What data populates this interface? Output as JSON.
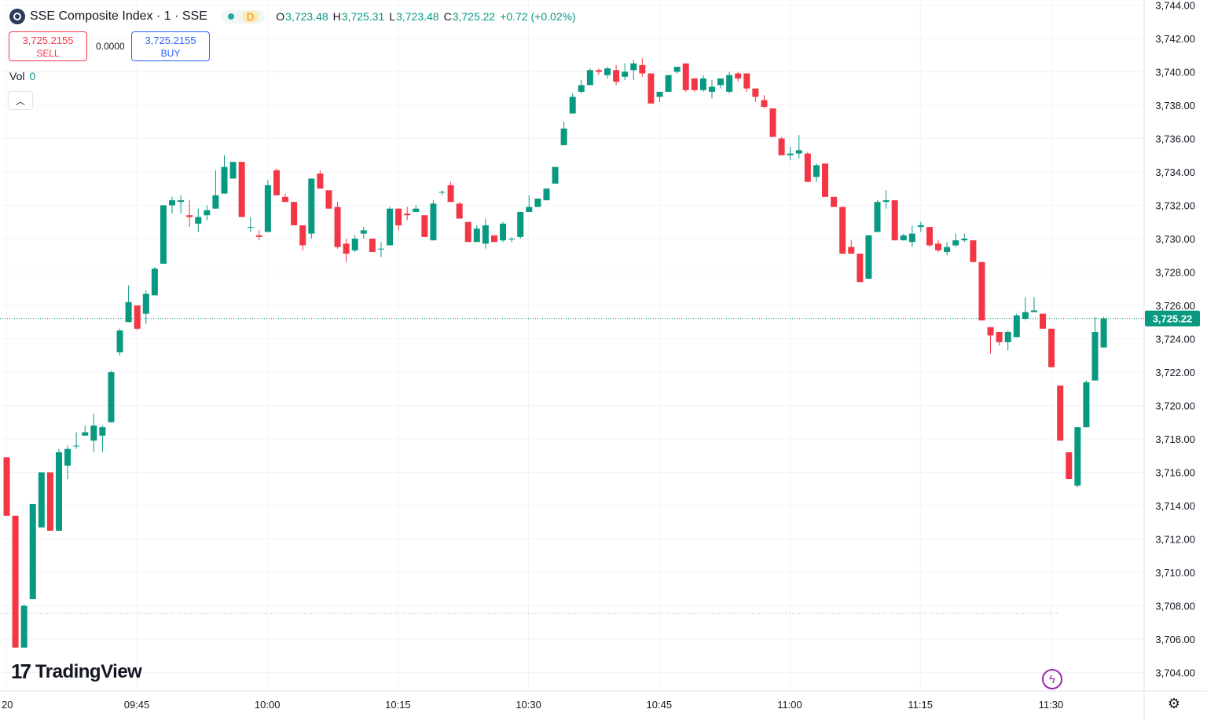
{
  "header": {
    "title": "SSE Composite Index · 1 · SSE",
    "status_letter": "D",
    "ohlc": {
      "o_label": "O",
      "o": "3,723.48",
      "h_label": "H",
      "h": "3,725.31",
      "l_label": "L",
      "l": "3,723.48",
      "c_label": "C",
      "c": "3,725.22",
      "change": "+0.72 (+0.02%)"
    }
  },
  "trade": {
    "sell_price": "3,725.2155",
    "sell_label": "SELL",
    "spread": "0.0000",
    "buy_price": "3,725.2155",
    "buy_label": "BUY"
  },
  "volume": {
    "label": "Vol",
    "value": "0"
  },
  "logo": {
    "text": "TradingView"
  },
  "icons": {
    "symbol": "sse-index-icon",
    "collapse": "chevron-up-icon",
    "flash": "lightning-icon",
    "settings": "gear-icon"
  },
  "colors": {
    "up": "#089981",
    "down": "#f23645",
    "price_badge": "#089981",
    "grid": "#f0f3fa",
    "reference_line": "#b2b5be"
  },
  "chart_data": {
    "type": "candlestick",
    "title": "SSE Composite Index · 1 · SSE",
    "interval": "1 minute",
    "x_ticks": [
      "20",
      "09:45",
      "10:00",
      "10:15",
      "10:30",
      "10:45",
      "11:00",
      "11:15",
      "11:30"
    ],
    "y_ticks": [
      "3,704.00",
      "3,706.00",
      "3,708.00",
      "3,710.00",
      "3,712.00",
      "3,714.00",
      "3,716.00",
      "3,718.00",
      "3,720.00",
      "3,722.00",
      "3,724.00",
      "3,726.00",
      "3,728.00",
      "3,730.00",
      "3,732.00",
      "3,734.00",
      "3,736.00",
      "3,738.00",
      "3,740.00",
      "3,742.00",
      "3,744.00"
    ],
    "ylim": [
      3702.9,
      3744.3
    ],
    "last_price": 3725.22,
    "last_price_label": "3,725.22",
    "reference_level": 3707.55,
    "grid": true,
    "minutes_visible": 122,
    "candles": [
      [
        3716.9,
        3716.9,
        3713.4,
        3713.4
      ],
      [
        3713.4,
        3713.4,
        3705.5,
        3705.5
      ],
      [
        3705.5,
        3708.1,
        3705.5,
        3708.0
      ],
      [
        3708.4,
        3714.1,
        3708.4,
        3714.1
      ],
      [
        3712.7,
        3716.0,
        3712.7,
        3716.0
      ],
      [
        3716.0,
        3716.0,
        3712.5,
        3712.5
      ],
      [
        3712.5,
        3717.4,
        3712.5,
        3717.2
      ],
      [
        3716.4,
        3717.6,
        3715.6,
        3717.4
      ],
      [
        3717.6,
        3718.4,
        3717.4,
        3717.6
      ],
      [
        3718.2,
        3718.8,
        3718.2,
        3718.4
      ],
      [
        3717.9,
        3719.5,
        3717.2,
        3718.8
      ],
      [
        3718.2,
        3718.8,
        3717.2,
        3718.7
      ],
      [
        3719.0,
        3722.1,
        3719.0,
        3722.0
      ],
      [
        3723.2,
        3724.6,
        3723.0,
        3724.5
      ],
      [
        3725.0,
        3727.2,
        3725.0,
        3726.2
      ],
      [
        3726.0,
        3726.0,
        3724.5,
        3724.6
      ],
      [
        3725.5,
        3726.9,
        3724.9,
        3726.7
      ],
      [
        3726.6,
        3728.3,
        3726.6,
        3728.2
      ],
      [
        3728.5,
        3732.0,
        3728.5,
        3732.0
      ],
      [
        3732.0,
        3732.5,
        3731.5,
        3732.3
      ],
      [
        3732.2,
        3732.6,
        3731.5,
        3732.3
      ],
      [
        3731.4,
        3732.3,
        3730.7,
        3731.3
      ],
      [
        3730.9,
        3731.8,
        3730.4,
        3731.3
      ],
      [
        3731.4,
        3732.0,
        3731.1,
        3731.7
      ],
      [
        3731.8,
        3734.1,
        3731.8,
        3732.6
      ],
      [
        3732.7,
        3735.0,
        3732.7,
        3734.3
      ],
      [
        3733.6,
        3734.4,
        3733.6,
        3734.6
      ],
      [
        3734.6,
        3734.6,
        3731.3,
        3731.3
      ],
      [
        3730.7,
        3731.3,
        3730.4,
        3730.7
      ],
      [
        3730.2,
        3730.5,
        3729.9,
        3730.1
      ],
      [
        3730.4,
        3733.5,
        3730.4,
        3733.2
      ],
      [
        3734.1,
        3734.2,
        3732.6,
        3732.6
      ],
      [
        3732.5,
        3732.7,
        3732.2,
        3732.2
      ],
      [
        3732.2,
        3732.2,
        3730.8,
        3730.8
      ],
      [
        3730.8,
        3730.8,
        3729.3,
        3729.6
      ],
      [
        3730.3,
        3733.6,
        3730.0,
        3733.6
      ],
      [
        3733.9,
        3734.1,
        3733.0,
        3733.0
      ],
      [
        3732.9,
        3732.9,
        3731.8,
        3731.8
      ],
      [
        3731.9,
        3732.2,
        3729.4,
        3729.5
      ],
      [
        3729.7,
        3730.0,
        3728.6,
        3729.1
      ],
      [
        3729.3,
        3730.2,
        3729.2,
        3730.0
      ],
      [
        3730.3,
        3730.7,
        3730.0,
        3730.5
      ],
      [
        3730.0,
        3730.0,
        3729.2,
        3729.2
      ],
      [
        3729.4,
        3729.8,
        3728.9,
        3729.4
      ],
      [
        3729.6,
        3731.9,
        3729.6,
        3731.8
      ],
      [
        3731.8,
        3731.8,
        3730.5,
        3730.8
      ],
      [
        3731.5,
        3731.9,
        3731.1,
        3731.4
      ],
      [
        3731.6,
        3732.0,
        3731.6,
        3731.8
      ],
      [
        3731.4,
        3731.4,
        3730.1,
        3730.1
      ],
      [
        3729.9,
        3732.3,
        3729.9,
        3732.1
      ],
      [
        3732.8,
        3732.9,
        3732.6,
        3732.8
      ],
      [
        3733.2,
        3733.4,
        3732.2,
        3732.2
      ],
      [
        3732.1,
        3732.2,
        3731.2,
        3731.2
      ],
      [
        3731.0,
        3731.0,
        3729.8,
        3729.8
      ],
      [
        3729.8,
        3730.8,
        3729.8,
        3730.6
      ],
      [
        3729.7,
        3731.2,
        3729.4,
        3730.8
      ],
      [
        3730.2,
        3730.2,
        3729.8,
        3729.8
      ],
      [
        3729.9,
        3731.0,
        3729.8,
        3730.9
      ],
      [
        3730.0,
        3730.1,
        3729.8,
        3730.0
      ],
      [
        3730.1,
        3731.6,
        3730.0,
        3731.6
      ],
      [
        3731.6,
        3732.6,
        3731.6,
        3731.9
      ],
      [
        3731.9,
        3732.4,
        3731.9,
        3732.4
      ],
      [
        3732.3,
        3733.0,
        3732.3,
        3733.0
      ],
      [
        3733.3,
        3734.3,
        3733.3,
        3734.3
      ],
      [
        3735.6,
        3737.0,
        3735.6,
        3736.6
      ],
      [
        3737.5,
        3738.7,
        3737.5,
        3738.5
      ],
      [
        3738.8,
        3739.5,
        3738.7,
        3739.2
      ],
      [
        3739.2,
        3740.2,
        3739.2,
        3740.1
      ],
      [
        3740.1,
        3740.2,
        3739.8,
        3740.0
      ],
      [
        3739.8,
        3740.3,
        3739.6,
        3740.2
      ],
      [
        3740.1,
        3740.4,
        3739.2,
        3739.4
      ],
      [
        3739.7,
        3740.5,
        3739.5,
        3740.0
      ],
      [
        3740.1,
        3740.7,
        3739.5,
        3740.5
      ],
      [
        3740.4,
        3740.8,
        3739.7,
        3739.9
      ],
      [
        3739.9,
        3739.9,
        3738.1,
        3738.1
      ],
      [
        3738.5,
        3738.8,
        3738.2,
        3738.8
      ],
      [
        3738.8,
        3739.8,
        3738.8,
        3739.8
      ],
      [
        3740.0,
        3740.3,
        3739.9,
        3740.3
      ],
      [
        3740.5,
        3740.5,
        3738.8,
        3738.9
      ],
      [
        3739.6,
        3739.6,
        3738.8,
        3738.9
      ],
      [
        3738.9,
        3739.8,
        3738.8,
        3739.6
      ],
      [
        3738.8,
        3739.5,
        3738.4,
        3739.1
      ],
      [
        3739.2,
        3739.6,
        3739.0,
        3739.6
      ],
      [
        3738.8,
        3740.0,
        3738.7,
        3739.8
      ],
      [
        3739.9,
        3740.0,
        3739.4,
        3739.6
      ],
      [
        3739.9,
        3739.9,
        3738.8,
        3739.0
      ],
      [
        3739.0,
        3739.0,
        3738.2,
        3738.5
      ],
      [
        3738.3,
        3738.6,
        3737.8,
        3737.9
      ],
      [
        3737.8,
        3737.8,
        3736.1,
        3736.1
      ],
      [
        3736.0,
        3736.1,
        3735.0,
        3735.0
      ],
      [
        3735.0,
        3735.5,
        3734.7,
        3735.1
      ],
      [
        3735.1,
        3736.2,
        3734.8,
        3735.3
      ],
      [
        3735.1,
        3735.2,
        3733.4,
        3733.4
      ],
      [
        3733.7,
        3734.5,
        3733.4,
        3734.4
      ],
      [
        3734.5,
        3734.5,
        3732.5,
        3732.5
      ],
      [
        3732.5,
        3732.5,
        3731.9,
        3731.9
      ],
      [
        3731.9,
        3731.9,
        3729.1,
        3729.1
      ],
      [
        3729.5,
        3729.9,
        3729.1,
        3729.1
      ],
      [
        3729.1,
        3729.1,
        3727.4,
        3727.4
      ],
      [
        3727.6,
        3730.2,
        3727.6,
        3730.2
      ],
      [
        3730.4,
        3732.3,
        3730.4,
        3732.2
      ],
      [
        3732.2,
        3732.9,
        3731.8,
        3732.3
      ],
      [
        3732.3,
        3732.3,
        3729.9,
        3729.9
      ],
      [
        3729.9,
        3730.3,
        3729.9,
        3730.2
      ],
      [
        3729.8,
        3730.8,
        3729.5,
        3730.3
      ],
      [
        3730.7,
        3731.0,
        3730.4,
        3730.8
      ],
      [
        3730.7,
        3730.7,
        3729.5,
        3729.6
      ],
      [
        3729.7,
        3729.9,
        3729.2,
        3729.3
      ],
      [
        3729.2,
        3729.8,
        3729.0,
        3729.5
      ],
      [
        3729.6,
        3730.3,
        3729.5,
        3729.9
      ],
      [
        3729.9,
        3730.3,
        3729.8,
        3730.0
      ],
      [
        3729.9,
        3729.9,
        3728.6,
        3728.6
      ],
      [
        3728.6,
        3728.6,
        3725.1,
        3725.1
      ],
      [
        3724.7,
        3724.7,
        3723.1,
        3724.2
      ],
      [
        3724.4,
        3724.4,
        3723.6,
        3723.8
      ],
      [
        3723.8,
        3724.5,
        3723.3,
        3724.4
      ],
      [
        3724.1,
        3725.5,
        3724.1,
        3725.4
      ],
      [
        3725.2,
        3726.5,
        3725.1,
        3725.6
      ],
      [
        3725.6,
        3726.5,
        3725.6,
        3725.7
      ],
      [
        3725.5,
        3725.5,
        3724.6,
        3724.6
      ],
      [
        3724.6,
        3724.6,
        3722.3,
        3722.3
      ],
      [
        3721.2,
        3721.2,
        3717.9,
        3717.9
      ],
      [
        3717.2,
        3717.2,
        3715.6,
        3715.6
      ],
      [
        3715.2,
        3718.7,
        3715.1,
        3718.7
      ],
      [
        3718.7,
        3721.5,
        3718.7,
        3721.4
      ],
      [
        3721.5,
        3725.3,
        3721.5,
        3724.4
      ],
      [
        3723.48,
        3725.31,
        3723.48,
        3725.22
      ]
    ]
  }
}
